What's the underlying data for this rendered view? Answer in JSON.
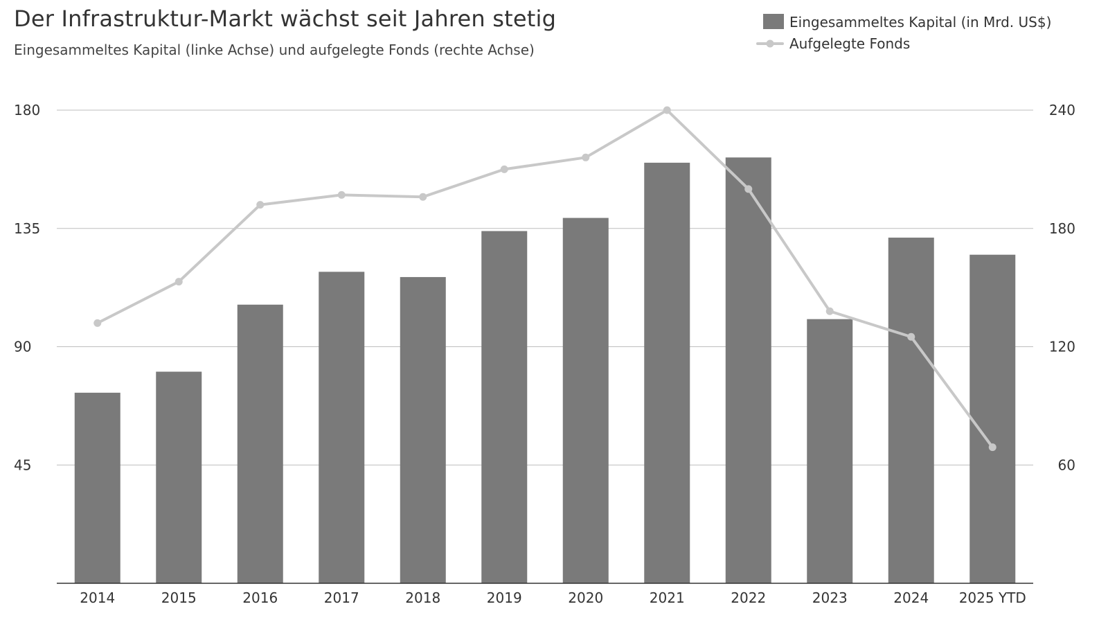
{
  "chart_data": {
    "type": "bar",
    "title": "Der Infrastruktur-Markt wächst seit Jahren stetig",
    "subtitle": "Eingesammeltes Kapital (linke Achse) und aufgelegte Fonds (rechte Achse)",
    "categories": [
      "2014",
      "2015",
      "2016",
      "2017",
      "2018",
      "2019",
      "2020",
      "2021",
      "2022",
      "2023",
      "2024",
      "2025 YTD"
    ],
    "series": [
      {
        "name": "Eingesammeltes Kapital (in Mrd. US$)",
        "type": "bar",
        "axis": "left",
        "color": "#7a7a7a",
        "values": [
          72.5,
          80.5,
          106,
          118.5,
          116.5,
          134,
          139,
          160,
          162,
          100.5,
          131.5,
          125
        ]
      },
      {
        "name": "Aufgelegte Fonds",
        "type": "line",
        "axis": "right",
        "color": "#c8c8c8",
        "values": [
          132,
          153,
          192,
          197,
          196,
          210,
          216,
          240,
          200,
          138,
          125,
          69
        ]
      }
    ],
    "y_left": {
      "min": 0,
      "max": 180,
      "ticks": [
        45,
        90,
        135,
        180
      ],
      "tick_labels": [
        "45",
        "90",
        "135",
        "180"
      ]
    },
    "y_right": {
      "min": 0,
      "max": 240,
      "ticks": [
        60,
        120,
        180,
        240
      ],
      "tick_labels": [
        "60",
        "120",
        "180",
        "240"
      ]
    },
    "grid": true,
    "legend_position": "top-right",
    "xlabel": "",
    "ylabel": ""
  }
}
